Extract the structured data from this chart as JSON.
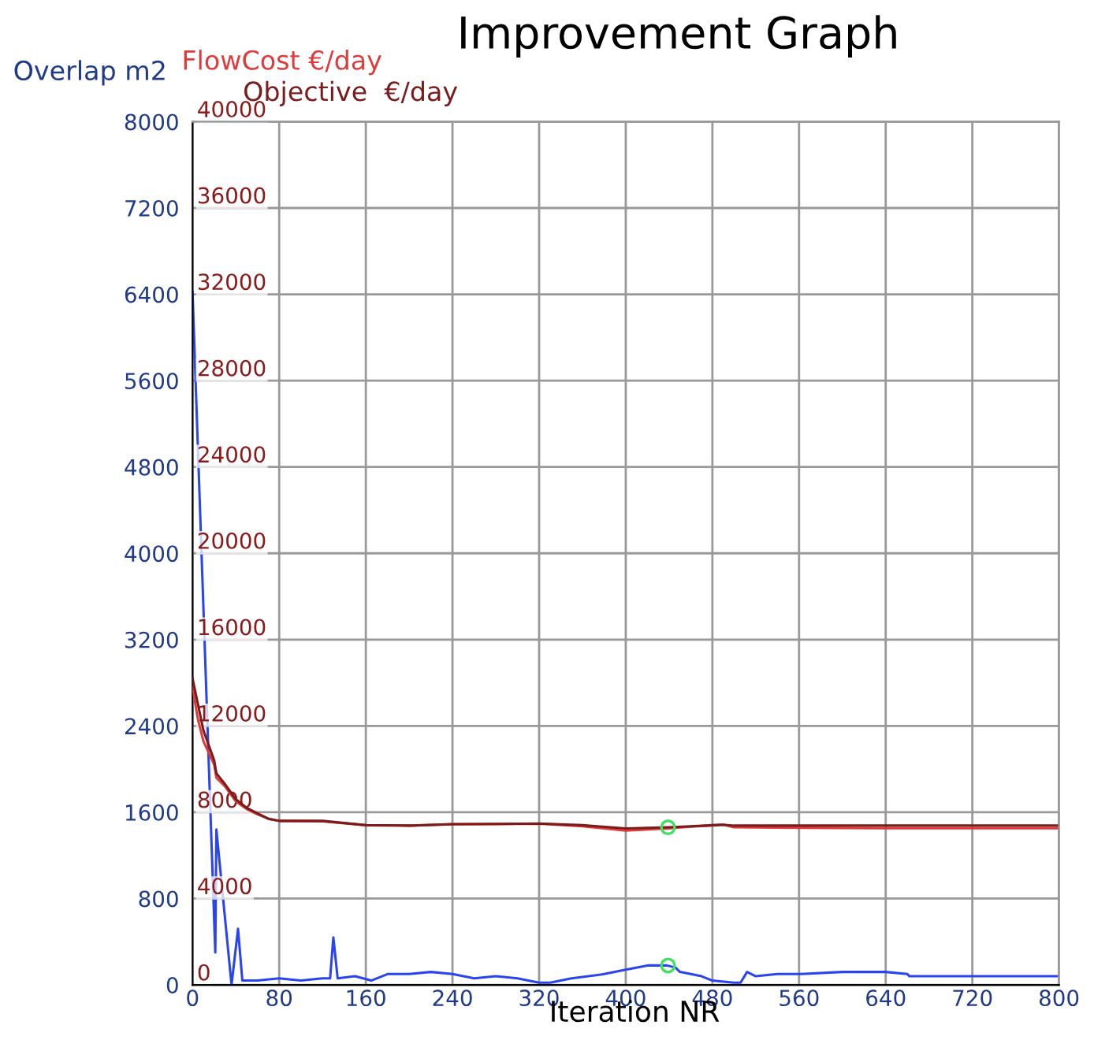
{
  "chart_data": {
    "type": "line",
    "title": "Improvement Graph",
    "xlabel": "Iteration NR",
    "ylabel": "Overlap m2",
    "xlim": [
      0,
      800
    ],
    "xticks": [
      0,
      80,
      160,
      240,
      320,
      400,
      480,
      560,
      640,
      720,
      800
    ],
    "ylim": [
      0,
      8000
    ],
    "yticks": [
      0,
      800,
      1600,
      2400,
      3200,
      4000,
      4800,
      5600,
      6400,
      7200,
      8000
    ],
    "y2lim": [
      0,
      40000
    ],
    "y2ticks": [
      0,
      4000,
      8000,
      12000,
      16000,
      20000,
      24000,
      28000,
      32000,
      36000,
      40000
    ],
    "grid": true,
    "legend": false,
    "marker": "none",
    "line_style": "solid",
    "series": [
      {
        "color": "#2a44f0",
        "axis": "y",
        "x": [
          0,
          21,
          22,
          36,
          42,
          46,
          60,
          80,
          100,
          120,
          127,
          130,
          134,
          150,
          165,
          180,
          200,
          220,
          240,
          260,
          280,
          300,
          320,
          330,
          350,
          380,
          400,
          420,
          438,
          446,
          450,
          470,
          480,
          500,
          506,
          512,
          520,
          540,
          560,
          600,
          640,
          660,
          662,
          700,
          760,
          800
        ],
        "values": [
          6420,
          300,
          1440,
          0,
          520,
          40,
          40,
          60,
          40,
          60,
          60,
          440,
          60,
          80,
          40,
          100,
          100,
          120,
          100,
          60,
          80,
          60,
          20,
          20,
          60,
          100,
          140,
          180,
          180,
          160,
          120,
          80,
          40,
          20,
          20,
          120,
          80,
          100,
          100,
          120,
          120,
          100,
          80,
          80,
          80,
          80
        ]
      },
      {
        "name": "FlowCost €/day",
        "color": "#e03a3a",
        "axis": "y2",
        "x": [
          0,
          5,
          10,
          20,
          22,
          30,
          40,
          50,
          60,
          70,
          80,
          120,
          160,
          200,
          240,
          280,
          320,
          360,
          400,
          439,
          460,
          480,
          490,
          500,
          560,
          640,
          720,
          800
        ],
        "values": [
          13800,
          12300,
          11300,
          10200,
          9600,
          9200,
          8500,
          8150,
          7900,
          7700,
          7600,
          7580,
          7400,
          7380,
          7440,
          7450,
          7470,
          7350,
          7150,
          7250,
          7330,
          7390,
          7420,
          7300,
          7280,
          7260,
          7260,
          7260
        ]
      },
      {
        "name": "Objective  €/day",
        "color": "#7a1c1c",
        "axis": "y2",
        "x": [
          0,
          5,
          10,
          20,
          22,
          30,
          40,
          50,
          60,
          70,
          80,
          120,
          160,
          200,
          240,
          280,
          320,
          360,
          400,
          439,
          460,
          480,
          490,
          500,
          560,
          640,
          720,
          800
        ],
        "values": [
          14200,
          13000,
          11800,
          10400,
          9800,
          9300,
          8600,
          8200,
          7950,
          7700,
          7600,
          7600,
          7400,
          7380,
          7450,
          7460,
          7480,
          7400,
          7250,
          7300,
          7350,
          7400,
          7420,
          7380,
          7380,
          7380,
          7380,
          7380
        ]
      },
      {
        "type": "scatter",
        "color": "#40e060",
        "axis": "y",
        "marker": "circle",
        "x": [
          439
        ],
        "values": [
          180
        ]
      },
      {
        "type": "scatter",
        "color": "#40e060",
        "axis": "y2",
        "marker": "circle",
        "x": [
          439
        ],
        "values": [
          7300
        ]
      }
    ]
  }
}
